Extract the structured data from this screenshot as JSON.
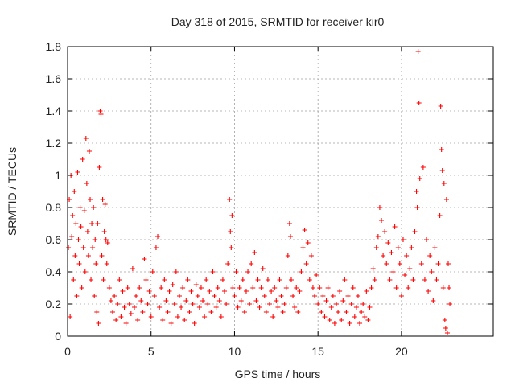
{
  "chart_data": {
    "type": "scatter",
    "title": "Day 318 of 2015, SRMTID for receiver kir0",
    "xlabel": "GPS time / hours",
    "ylabel": "SRMTID / TECUs",
    "xlim": [
      0,
      25.5
    ],
    "ylim": [
      0,
      1.8
    ],
    "x_ticks": [
      0,
      5,
      10,
      15,
      20
    ],
    "y_ticks": [
      0,
      0.2,
      0.4,
      0.6,
      0.8,
      1,
      1.2,
      1.4,
      1.6,
      1.8
    ],
    "x_tick_labels": [
      "0",
      "5",
      "10",
      "15",
      "20"
    ],
    "y_tick_labels": [
      "0",
      "0.2",
      "0.4",
      "0.6",
      "0.8",
      "1",
      "1.2",
      "1.4",
      "1.6",
      "1.8"
    ],
    "grid": true,
    "marker": "plus",
    "color": "#ff0000",
    "series": [
      {
        "name": "kir0",
        "points": [
          [
            0.05,
            0.55
          ],
          [
            0.1,
            0.85
          ],
          [
            0.15,
            0.12
          ],
          [
            0.2,
            1.0
          ],
          [
            0.25,
            0.62
          ],
          [
            0.3,
            0.75
          ],
          [
            0.35,
            0.35
          ],
          [
            0.4,
            0.9
          ],
          [
            0.45,
            0.5
          ],
          [
            0.5,
            0.7
          ],
          [
            0.55,
            0.25
          ],
          [
            0.6,
            1.02
          ],
          [
            0.65,
            0.6
          ],
          [
            0.7,
            0.45
          ],
          [
            0.75,
            0.8
          ],
          [
            0.8,
            0.68
          ],
          [
            0.85,
            0.3
          ],
          [
            0.9,
            1.1
          ],
          [
            0.95,
            0.55
          ],
          [
            1.0,
            0.78
          ],
          [
            1.05,
            0.4
          ],
          [
            1.1,
            1.23
          ],
          [
            1.15,
            0.95
          ],
          [
            1.2,
            0.65
          ],
          [
            1.25,
            0.5
          ],
          [
            1.3,
            1.15
          ],
          [
            1.35,
            0.85
          ],
          [
            1.4,
            0.35
          ],
          [
            1.45,
            0.7
          ],
          [
            1.5,
            0.55
          ],
          [
            1.55,
            0.8
          ],
          [
            1.6,
            0.25
          ],
          [
            1.65,
            0.6
          ],
          [
            1.7,
            0.45
          ],
          [
            1.75,
            0.15
          ],
          [
            1.8,
            0.7
          ],
          [
            1.85,
            0.08
          ],
          [
            1.9,
            1.05
          ],
          [
            1.95,
            1.4
          ],
          [
            2.0,
            1.38
          ],
          [
            2.05,
            0.5
          ],
          [
            2.1,
            0.85
          ],
          [
            2.15,
            0.35
          ],
          [
            2.2,
            0.65
          ],
          [
            2.25,
            0.82
          ],
          [
            2.3,
            0.6
          ],
          [
            2.35,
            0.45
          ],
          [
            2.4,
            0.58
          ],
          [
            2.5,
            0.3
          ],
          [
            2.6,
            0.22
          ],
          [
            2.7,
            0.15
          ],
          [
            2.8,
            0.25
          ],
          [
            2.9,
            0.1
          ],
          [
            3.0,
            0.2
          ],
          [
            3.1,
            0.35
          ],
          [
            3.2,
            0.12
          ],
          [
            3.3,
            0.28
          ],
          [
            3.4,
            0.18
          ],
          [
            3.5,
            0.08
          ],
          [
            3.6,
            0.3
          ],
          [
            3.7,
            0.2
          ],
          [
            3.8,
            0.14
          ],
          [
            3.9,
            0.42
          ],
          [
            4.0,
            0.18
          ],
          [
            4.1,
            0.25
          ],
          [
            4.2,
            0.1
          ],
          [
            4.3,
            0.3
          ],
          [
            4.4,
            0.22
          ],
          [
            4.5,
            0.15
          ],
          [
            4.6,
            0.48
          ],
          [
            4.7,
            0.35
          ],
          [
            4.8,
            0.2
          ],
          [
            4.9,
            0.28
          ],
          [
            5.0,
            0.12
          ],
          [
            5.1,
            0.4
          ],
          [
            5.2,
            0.25
          ],
          [
            5.3,
            0.55
          ],
          [
            5.4,
            0.62
          ],
          [
            5.5,
            0.18
          ],
          [
            5.6,
            0.3
          ],
          [
            5.7,
            0.1
          ],
          [
            5.8,
            0.35
          ],
          [
            5.9,
            0.22
          ],
          [
            6.0,
            0.15
          ],
          [
            6.1,
            0.28
          ],
          [
            6.2,
            0.08
          ],
          [
            6.3,
            0.32
          ],
          [
            6.4,
            0.2
          ],
          [
            6.5,
            0.4
          ],
          [
            6.6,
            0.12
          ],
          [
            6.7,
            0.25
          ],
          [
            6.8,
            0.18
          ],
          [
            6.9,
            0.3
          ],
          [
            7.0,
            0.1
          ],
          [
            7.1,
            0.22
          ],
          [
            7.2,
            0.35
          ],
          [
            7.3,
            0.15
          ],
          [
            7.4,
            0.28
          ],
          [
            7.5,
            0.2
          ],
          [
            7.6,
            0.08
          ],
          [
            7.7,
            0.32
          ],
          [
            7.8,
            0.25
          ],
          [
            7.9,
            0.18
          ],
          [
            8.0,
            0.3
          ],
          [
            8.1,
            0.22
          ],
          [
            8.2,
            0.12
          ],
          [
            8.3,
            0.35
          ],
          [
            8.4,
            0.2
          ],
          [
            8.5,
            0.28
          ],
          [
            8.6,
            0.15
          ],
          [
            8.7,
            0.4
          ],
          [
            8.8,
            0.25
          ],
          [
            8.9,
            0.18
          ],
          [
            9.0,
            0.3
          ],
          [
            9.1,
            0.22
          ],
          [
            9.2,
            0.12
          ],
          [
            9.3,
            0.35
          ],
          [
            9.4,
            0.28
          ],
          [
            9.5,
            0.2
          ],
          [
            9.6,
            0.45
          ],
          [
            9.7,
            0.85
          ],
          [
            9.75,
            0.65
          ],
          [
            9.8,
            0.55
          ],
          [
            9.85,
            0.75
          ],
          [
            9.9,
            0.3
          ],
          [
            10.0,
            0.25
          ],
          [
            10.1,
            0.4
          ],
          [
            10.2,
            0.18
          ],
          [
            10.3,
            0.3
          ],
          [
            10.4,
            0.22
          ],
          [
            10.5,
            0.35
          ],
          [
            10.6,
            0.15
          ],
          [
            10.7,
            0.28
          ],
          [
            10.8,
            0.4
          ],
          [
            10.9,
            0.2
          ],
          [
            11.0,
            0.45
          ],
          [
            11.1,
            0.3
          ],
          [
            11.2,
            0.52
          ],
          [
            11.3,
            0.22
          ],
          [
            11.4,
            0.35
          ],
          [
            11.5,
            0.18
          ],
          [
            11.6,
            0.3
          ],
          [
            11.7,
            0.42
          ],
          [
            11.8,
            0.25
          ],
          [
            11.9,
            0.15
          ],
          [
            12.0,
            0.35
          ],
          [
            12.1,
            0.2
          ],
          [
            12.2,
            0.28
          ],
          [
            12.3,
            0.12
          ],
          [
            12.4,
            0.3
          ],
          [
            12.5,
            0.22
          ],
          [
            12.6,
            0.18
          ],
          [
            12.7,
            0.35
          ],
          [
            12.8,
            0.25
          ],
          [
            12.9,
            0.15
          ],
          [
            13.0,
            0.2
          ],
          [
            13.1,
            0.3
          ],
          [
            13.2,
            0.5
          ],
          [
            13.3,
            0.7
          ],
          [
            13.35,
            0.62
          ],
          [
            13.4,
            0.35
          ],
          [
            13.5,
            0.25
          ],
          [
            13.6,
            0.18
          ],
          [
            13.7,
            0.3
          ],
          [
            13.8,
            0.15
          ],
          [
            13.9,
            0.28
          ],
          [
            14.0,
            0.4
          ],
          [
            14.1,
            0.55
          ],
          [
            14.2,
            0.66
          ],
          [
            14.3,
            0.45
          ],
          [
            14.4,
            0.58
          ],
          [
            14.5,
            0.35
          ],
          [
            14.6,
            0.5
          ],
          [
            14.7,
            0.3
          ],
          [
            14.8,
            0.25
          ],
          [
            14.9,
            0.38
          ],
          [
            15.0,
            0.2
          ],
          [
            15.1,
            0.3
          ],
          [
            15.2,
            0.15
          ],
          [
            15.3,
            0.25
          ],
          [
            15.4,
            0.12
          ],
          [
            15.5,
            0.22
          ],
          [
            15.6,
            0.3
          ],
          [
            15.7,
            0.1
          ],
          [
            15.8,
            0.18
          ],
          [
            15.9,
            0.25
          ],
          [
            16.0,
            0.08
          ],
          [
            16.1,
            0.2
          ],
          [
            16.2,
            0.15
          ],
          [
            16.3,
            0.28
          ],
          [
            16.4,
            0.1
          ],
          [
            16.5,
            0.22
          ],
          [
            16.6,
            0.35
          ],
          [
            16.7,
            0.15
          ],
          [
            16.8,
            0.25
          ],
          [
            16.9,
            0.08
          ],
          [
            17.0,
            0.2
          ],
          [
            17.1,
            0.3
          ],
          [
            17.2,
            0.12
          ],
          [
            17.3,
            0.18
          ],
          [
            17.4,
            0.25
          ],
          [
            17.5,
            0.08
          ],
          [
            17.6,
            0.15
          ],
          [
            17.7,
            0.2
          ],
          [
            17.8,
            0.12
          ],
          [
            17.9,
            0.28
          ],
          [
            18.0,
            0.1
          ],
          [
            18.1,
            0.18
          ],
          [
            18.2,
            0.3
          ],
          [
            18.3,
            0.42
          ],
          [
            18.4,
            0.35
          ],
          [
            18.5,
            0.55
          ],
          [
            18.6,
            0.62
          ],
          [
            18.7,
            0.8
          ],
          [
            18.8,
            0.72
          ],
          [
            18.9,
            0.5
          ],
          [
            19.0,
            0.65
          ],
          [
            19.1,
            0.45
          ],
          [
            19.2,
            0.58
          ],
          [
            19.3,
            0.35
          ],
          [
            19.4,
            0.52
          ],
          [
            19.5,
            0.4
          ],
          [
            19.6,
            0.68
          ],
          [
            19.7,
            0.3
          ],
          [
            19.8,
            0.55
          ],
          [
            19.9,
            0.45
          ],
          [
            20.0,
            0.25
          ],
          [
            20.1,
            0.6
          ],
          [
            20.2,
            0.38
          ],
          [
            20.3,
            0.5
          ],
          [
            20.4,
            0.3
          ],
          [
            20.5,
            0.42
          ],
          [
            20.6,
            0.55
          ],
          [
            20.7,
            0.35
          ],
          [
            20.8,
            0.65
          ],
          [
            20.9,
            0.9
          ],
          [
            20.95,
            0.8
          ],
          [
            21.0,
            1.77
          ],
          [
            21.05,
            1.45
          ],
          [
            21.1,
            0.98
          ],
          [
            21.2,
            0.45
          ],
          [
            21.3,
            1.05
          ],
          [
            21.4,
            0.35
          ],
          [
            21.5,
            0.6
          ],
          [
            21.6,
            0.28
          ],
          [
            21.7,
            0.5
          ],
          [
            21.8,
            0.4
          ],
          [
            21.9,
            0.22
          ],
          [
            22.0,
            0.55
          ],
          [
            22.1,
            0.35
          ],
          [
            22.2,
            0.45
          ],
          [
            22.3,
            0.75
          ],
          [
            22.35,
            1.43
          ],
          [
            22.4,
            1.16
          ],
          [
            22.45,
            1.03
          ],
          [
            22.5,
            0.3
          ],
          [
            22.55,
            0.95
          ],
          [
            22.6,
            0.1
          ],
          [
            22.65,
            0.05
          ],
          [
            22.7,
            0.85
          ],
          [
            22.75,
            0.02
          ],
          [
            22.8,
            0.45
          ],
          [
            22.85,
            0.3
          ],
          [
            22.9,
            0.2
          ]
        ]
      }
    ]
  }
}
